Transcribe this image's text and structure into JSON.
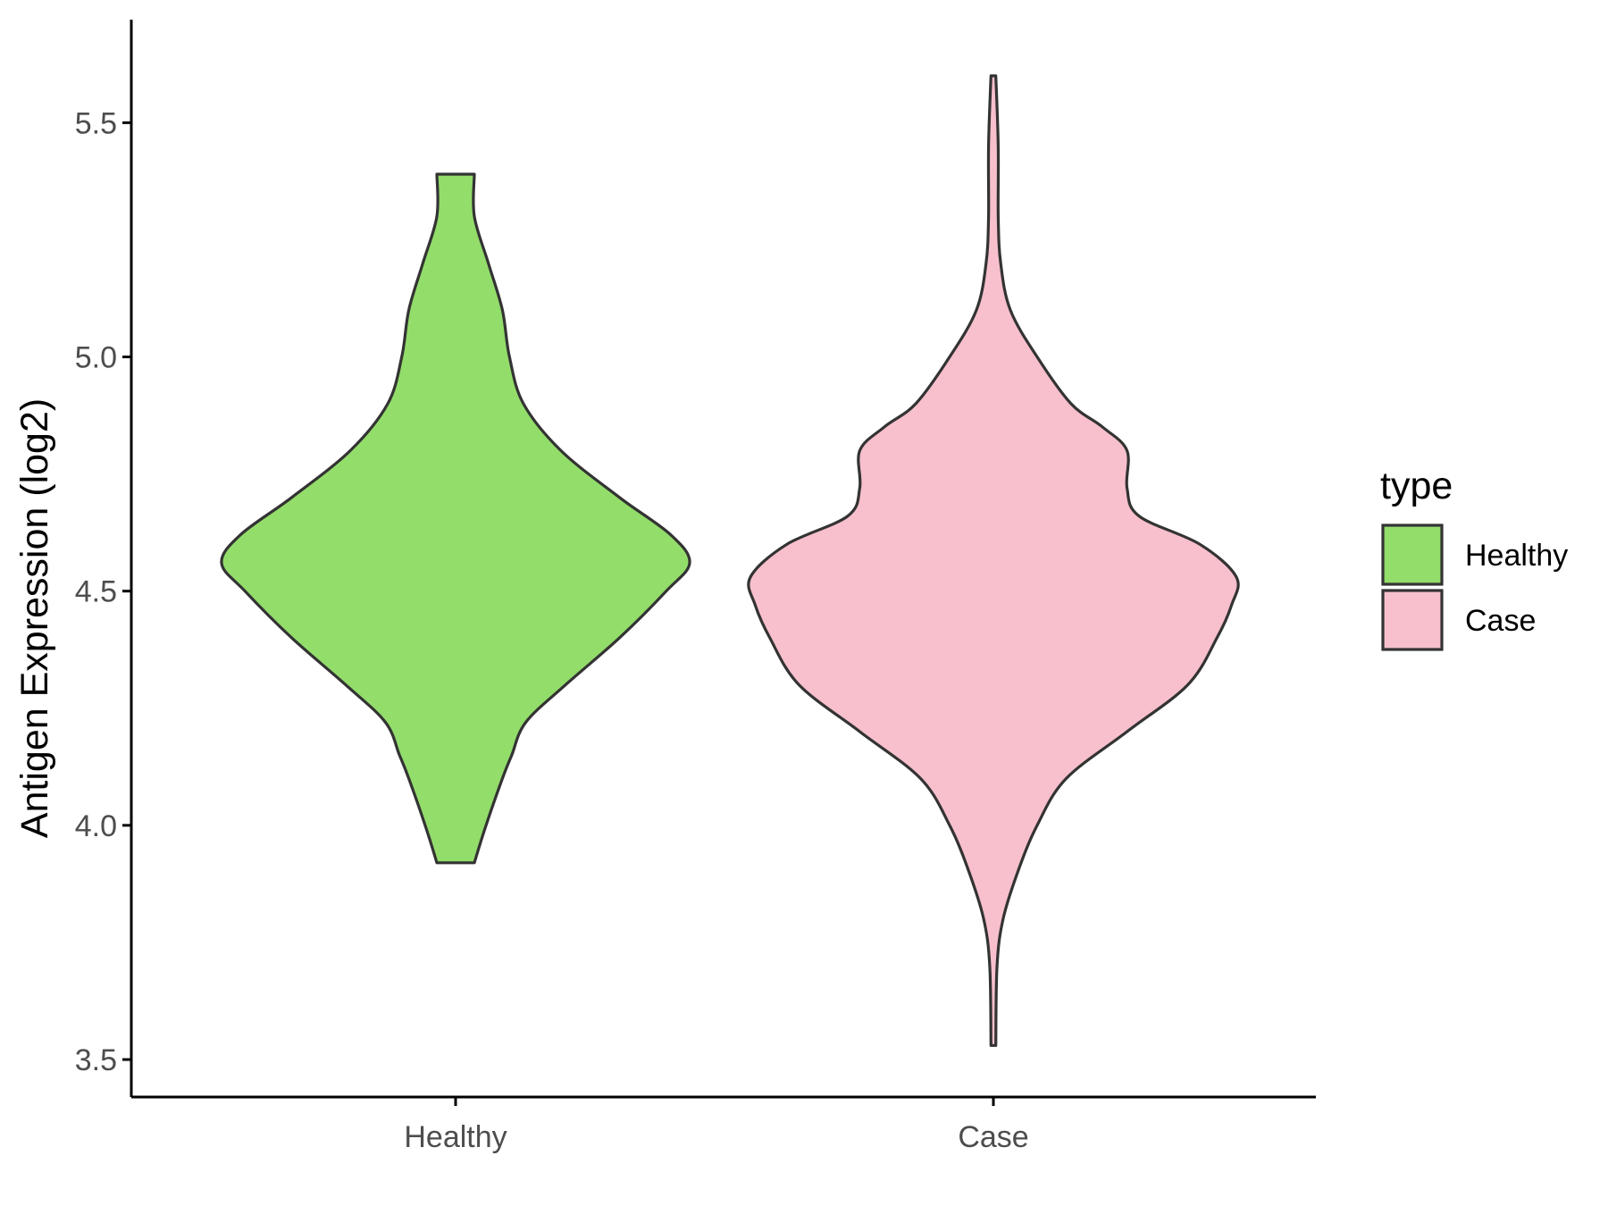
{
  "chart_data": {
    "type": "violin",
    "categories": [
      "Healthy",
      "Case"
    ],
    "ylabel": "Antigen Expression (log2)",
    "xlabel": "",
    "ylim": [
      3.42,
      5.72
    ],
    "yticks": [
      3.5,
      4.0,
      4.5,
      5.0,
      5.5
    ],
    "ytick_labels": [
      "3.5",
      "4.0",
      "4.5",
      "5.0",
      "5.5"
    ],
    "grid": false,
    "legend": {
      "title": "type",
      "position": "right",
      "entries": [
        {
          "label": "Healthy",
          "color": "#93DD6B"
        },
        {
          "label": "Case",
          "color": "#F7C0CC"
        }
      ]
    },
    "series": [
      {
        "name": "Healthy",
        "color": "#93DD6B",
        "range": [
          3.92,
          5.39
        ],
        "density_profile": [
          [
            3.92,
            0.08
          ],
          [
            4.0,
            0.13
          ],
          [
            4.1,
            0.2
          ],
          [
            4.15,
            0.24
          ],
          [
            4.22,
            0.3
          ],
          [
            4.3,
            0.47
          ],
          [
            4.4,
            0.7
          ],
          [
            4.5,
            0.9
          ],
          [
            4.56,
            1.0
          ],
          [
            4.62,
            0.92
          ],
          [
            4.7,
            0.7
          ],
          [
            4.8,
            0.45
          ],
          [
            4.9,
            0.29
          ],
          [
            5.0,
            0.23
          ],
          [
            5.1,
            0.2
          ],
          [
            5.2,
            0.14
          ],
          [
            5.3,
            0.08
          ],
          [
            5.39,
            0.08
          ]
        ]
      },
      {
        "name": "Case",
        "color": "#F7C0CC",
        "range": [
          3.53,
          5.6
        ],
        "density_profile": [
          [
            3.53,
            0.01
          ],
          [
            3.7,
            0.015
          ],
          [
            3.8,
            0.04
          ],
          [
            3.9,
            0.1
          ],
          [
            4.0,
            0.18
          ],
          [
            4.1,
            0.3
          ],
          [
            4.2,
            0.55
          ],
          [
            4.3,
            0.8
          ],
          [
            4.4,
            0.92
          ],
          [
            4.47,
            0.98
          ],
          [
            4.53,
            1.0
          ],
          [
            4.6,
            0.85
          ],
          [
            4.66,
            0.6
          ],
          [
            4.72,
            0.55
          ],
          [
            4.8,
            0.55
          ],
          [
            4.85,
            0.45
          ],
          [
            4.9,
            0.32
          ],
          [
            5.0,
            0.18
          ],
          [
            5.1,
            0.07
          ],
          [
            5.2,
            0.03
          ],
          [
            5.3,
            0.02
          ],
          [
            5.45,
            0.02
          ],
          [
            5.6,
            0.01
          ]
        ]
      }
    ]
  }
}
